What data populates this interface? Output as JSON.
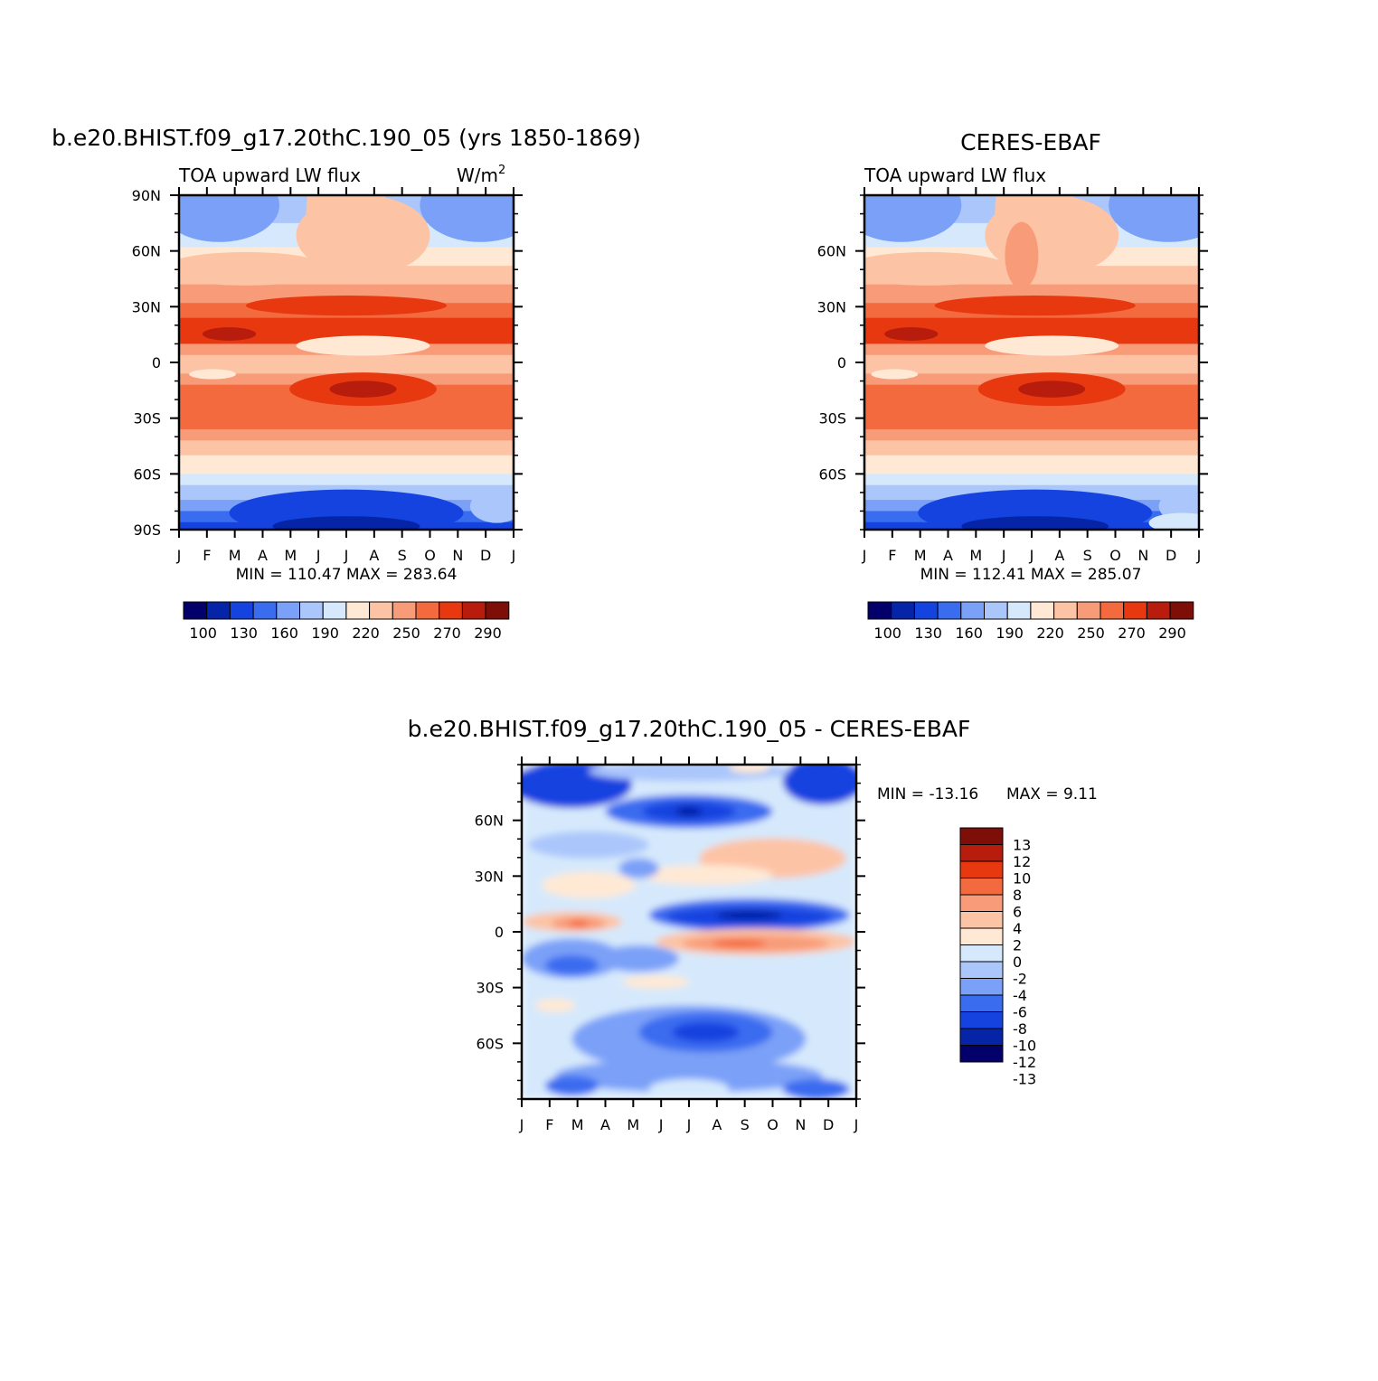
{
  "palette": {
    "main": [
      "#03006b",
      "#0624a7",
      "#1543e0",
      "#3a6cf0",
      "#7aa0f8",
      "#aac6fb",
      "#d6e9fc",
      "#ffe9d4",
      "#fdc3a5",
      "#f89b78",
      "#f46a3f",
      "#e83810",
      "#b81c0c",
      "#7e0f08"
    ],
    "diff": [
      "#03006b",
      "#0624a7",
      "#1543e0",
      "#3a6cf0",
      "#7aa0f8",
      "#aac6fb",
      "#d6e9fc",
      "#ffe9d4",
      "#fdc3a5",
      "#f89b78",
      "#f46a3f",
      "#e83810",
      "#b81c0c",
      "#7e0f08"
    ]
  },
  "panels": [
    {
      "id": "model",
      "title": "b.e20.BHIST.f09_g17.20thC.190_05 (yrs 1850-1869)",
      "variable": "TOA upward LW flux",
      "units_base": "W/m",
      "units_exp": "2",
      "stats": "MIN = 110.47 MAX = 283.64"
    },
    {
      "id": "obs",
      "title": "CERES-EBAF",
      "variable": "TOA upward LW flux",
      "stats": "MIN = 112.41 MAX = 285.07"
    },
    {
      "id": "diff",
      "title": "b.e20.BHIST.f09_g17.20thC.190_05 - CERES-EBAF",
      "stats_min": "MIN = -13.16",
      "stats_max": "MAX = 9.11"
    }
  ],
  "chart_data": [
    {
      "type": "heatmap",
      "title": "b.e20.BHIST.f09_g17.20thC.190_05 (yrs 1850-1869)",
      "subtitle": "TOA upward LW flux",
      "units": "W/m2",
      "x_ticks": [
        "J",
        "F",
        "M",
        "A",
        "M",
        "J",
        "J",
        "A",
        "S",
        "O",
        "N",
        "D",
        "J"
      ],
      "y_ticks": [
        "90N",
        "60N",
        "30N",
        "0",
        "30S",
        "60S",
        "90S"
      ],
      "y_values": [
        90,
        60,
        30,
        0,
        -30,
        -60,
        -90
      ],
      "xlim": [
        0,
        12
      ],
      "ylim": [
        -90,
        90
      ],
      "colorbar_levels": [
        100,
        110,
        120,
        130,
        140,
        150,
        160,
        170,
        180,
        190,
        200,
        210,
        220,
        230,
        240,
        250,
        260,
        270,
        280,
        290
      ],
      "colorbar_labels": [
        "100",
        "130",
        "160",
        "190",
        "220",
        "250",
        "270",
        "290"
      ],
      "min": 110.47,
      "max": 283.64
    },
    {
      "type": "heatmap",
      "title": "CERES-EBAF",
      "subtitle": "TOA upward LW flux",
      "x_ticks": [
        "J",
        "F",
        "M",
        "A",
        "M",
        "J",
        "J",
        "A",
        "S",
        "O",
        "N",
        "D",
        "J"
      ],
      "y_ticks": [
        "60N",
        "30N",
        "0",
        "30S",
        "60S"
      ],
      "y_values": [
        60,
        30,
        0,
        -30,
        -60
      ],
      "xlim": [
        0,
        12
      ],
      "ylim": [
        -90,
        90
      ],
      "colorbar_labels": [
        "100",
        "130",
        "160",
        "190",
        "220",
        "250",
        "270",
        "290"
      ],
      "min": 112.41,
      "max": 285.07
    },
    {
      "type": "heatmap",
      "title": "b.e20.BHIST.f09_g17.20thC.190_05 - CERES-EBAF",
      "x_ticks": [
        "J",
        "F",
        "M",
        "A",
        "M",
        "J",
        "J",
        "A",
        "S",
        "O",
        "N",
        "D",
        "J"
      ],
      "y_ticks": [
        "60N",
        "30N",
        "0",
        "30S",
        "60S"
      ],
      "y_values": [
        60,
        30,
        0,
        -30,
        -60
      ],
      "xlim": [
        0,
        12
      ],
      "ylim": [
        -90,
        90
      ],
      "colorbar_levels": [
        -13,
        -12,
        -10,
        -8,
        -6,
        -4,
        -2,
        0,
        2,
        4,
        6,
        8,
        10,
        12,
        13
      ],
      "colorbar_labels": [
        "13",
        "12",
        "10",
        "8",
        "6",
        "4",
        "2",
        "0",
        "-2",
        "-4",
        "-6",
        "-8",
        "-10",
        "-12",
        "-13"
      ],
      "min": -13.16,
      "max": 9.11
    }
  ]
}
